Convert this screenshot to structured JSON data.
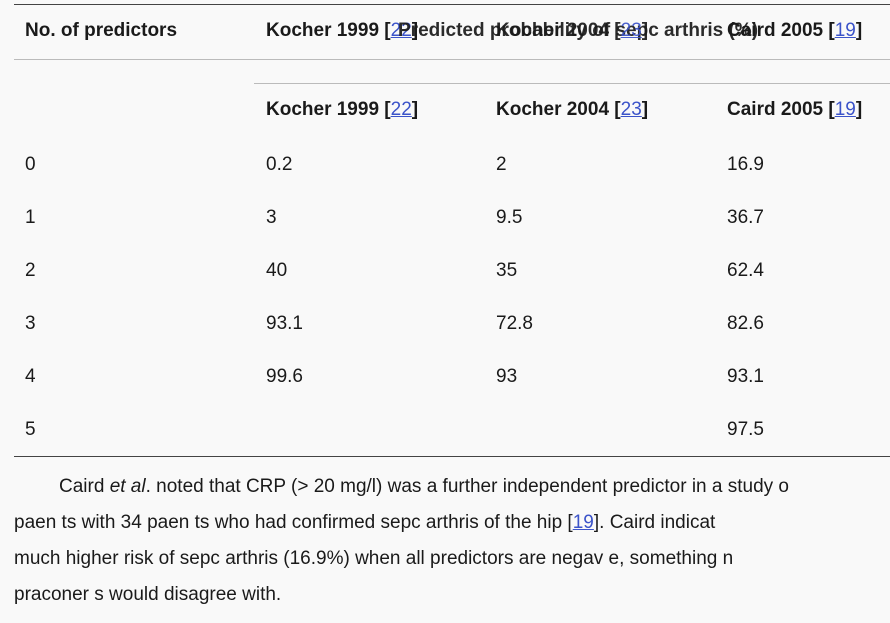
{
  "table": {
    "col0_header": "No. of predictors",
    "spanner_header": "Predicted probability of sepc arthris (%)",
    "top_overlap_labels": [
      {
        "name": "Kocher 1999 [",
        "ref": "22",
        "close": "]"
      },
      {
        "name": "Kocher 2004 [",
        "ref": "23",
        "close": "]"
      },
      {
        "name": "Caird 2005 [",
        "ref": "19",
        "close": "]"
      }
    ],
    "columns": [
      {
        "name": "Kocher 1999 [",
        "ref": "22",
        "close": "]"
      },
      {
        "name": "Kocher 2004 [",
        "ref": "23",
        "close": "]"
      },
      {
        "name": "Caird 2005 [",
        "ref": "19",
        "close": "]"
      }
    ],
    "rows": [
      {
        "predictors": "0",
        "k1999": "0.2",
        "k2004": "2",
        "c2005": "16.9"
      },
      {
        "predictors": "1",
        "k1999": "3",
        "k2004": "9.5",
        "c2005": "36.7"
      },
      {
        "predictors": "2",
        "k1999": "40",
        "k2004": "35",
        "c2005": "62.4"
      },
      {
        "predictors": "3",
        "k1999": "93.1",
        "k2004": "72.8",
        "c2005": "82.6"
      },
      {
        "predictors": "4",
        "k1999": "99.6",
        "k2004": "93",
        "c2005": "93.1"
      },
      {
        "predictors": "5",
        "k1999": "",
        "k2004": "",
        "c2005": "97.5"
      }
    ]
  },
  "paragraph": {
    "l1_a": "Caird ",
    "l1_em": "et al",
    "l1_b": ". noted that CRP (> 20 mg/l) was a further independent predictor in a study o",
    "l2_a": "paen  ts with 34 paen  ts who had confirmed sepc   arthris   of the hip [",
    "l2_ref": "19",
    "l2_b": "]. Caird indicat",
    "l3": "much higher risk of sepc   arthris   (16.9%) when all predictors are negav  e, something n",
    "l4": "praconer     s would disagree with."
  }
}
